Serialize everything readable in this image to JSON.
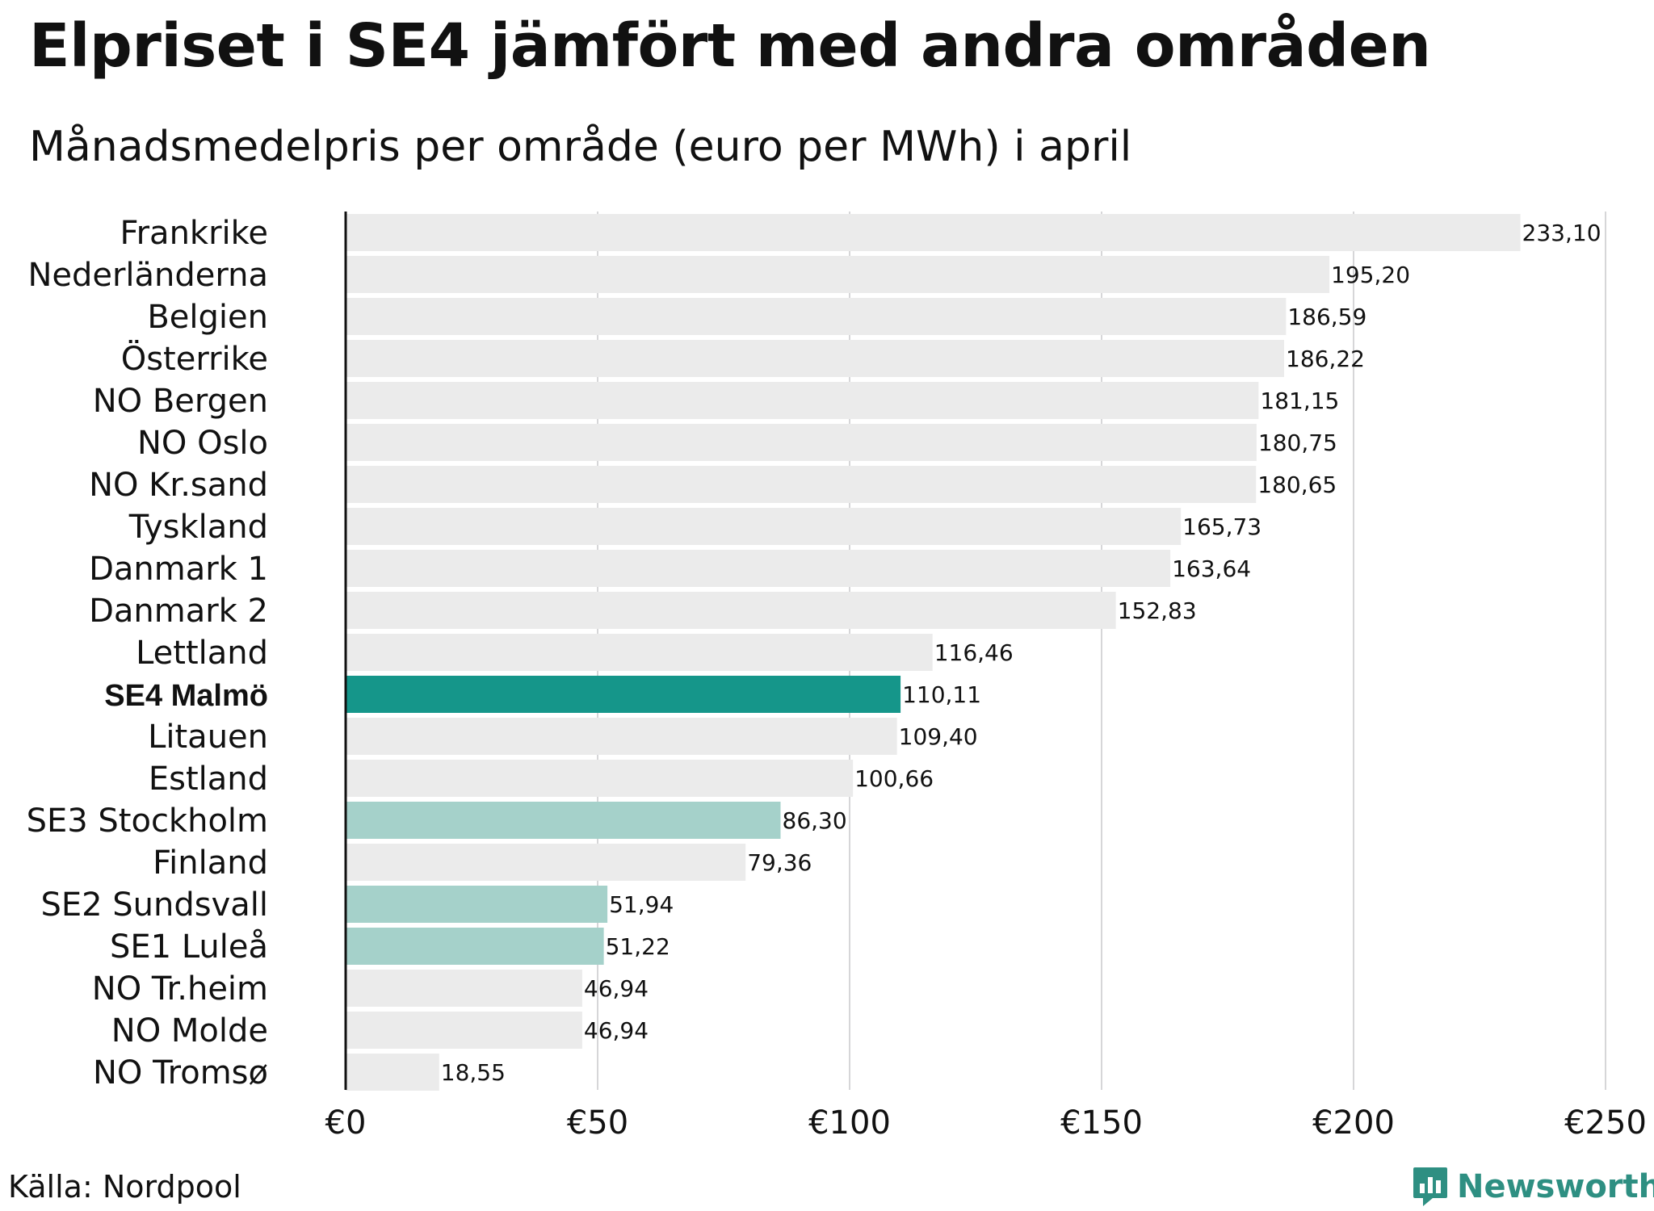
{
  "header": {
    "title": "Elpriset i SE4 jämfört med andra områden",
    "subtitle": "Månadsmedelpris per område (euro per MWh) i april"
  },
  "footer": {
    "source": "Källa: Nordpool",
    "brand": "Newsworthy"
  },
  "colors": {
    "default_bar": "#ebebeb",
    "highlight_bar": "#15968a",
    "se_bar": "#a5d1ca",
    "grid": "#c8c8cc",
    "axis": "#111111",
    "brand": "#2e8f82"
  },
  "chart_data": {
    "type": "bar",
    "orientation": "horizontal",
    "title": "Elpriset i SE4 jämfört med andra områden",
    "subtitle": "Månadsmedelpris per område (euro per MWh) i april",
    "xlabel": "",
    "ylabel": "",
    "xlim": [
      0,
      250
    ],
    "x_ticks": [
      0,
      50,
      100,
      150,
      200,
      250
    ],
    "x_tick_labels": [
      "€0",
      "€50",
      "€100",
      "€150",
      "€200",
      "€250"
    ],
    "grid": true,
    "categories": [
      "Frankrike",
      "Nederländerna",
      "Belgien",
      "Österrike",
      "NO Bergen",
      "NO Oslo",
      "NO Kr.sand",
      "Tyskland",
      "Danmark 1",
      "Danmark 2",
      "Lettland",
      "SE4 Malmö",
      "Litauen",
      "Estland",
      "SE3 Stockholm",
      "Finland",
      "SE2 Sundsvall",
      "SE1 Luleå",
      "NO Tr.heim",
      "NO Molde",
      "NO Tromsø"
    ],
    "values": [
      233.1,
      195.2,
      186.59,
      186.22,
      181.15,
      180.75,
      180.65,
      165.73,
      163.64,
      152.83,
      116.46,
      110.11,
      109.4,
      100.66,
      86.3,
      79.36,
      51.94,
      51.22,
      46.94,
      46.94,
      18.55
    ],
    "value_labels": [
      "233,10",
      "195,20",
      "186,59",
      "186,22",
      "181,15",
      "180,75",
      "180,65",
      "165,73",
      "163,64",
      "152,83",
      "116,46",
      "110,11",
      "109,40",
      "100,66",
      "86,30",
      "79,36",
      "51,94",
      "51,22",
      "46,94",
      "46,94",
      "18,55"
    ],
    "highlight": [
      "default",
      "default",
      "default",
      "default",
      "default",
      "default",
      "default",
      "default",
      "default",
      "default",
      "default",
      "primary",
      "default",
      "default",
      "secondary",
      "default",
      "secondary",
      "secondary",
      "default",
      "default",
      "default"
    ]
  }
}
